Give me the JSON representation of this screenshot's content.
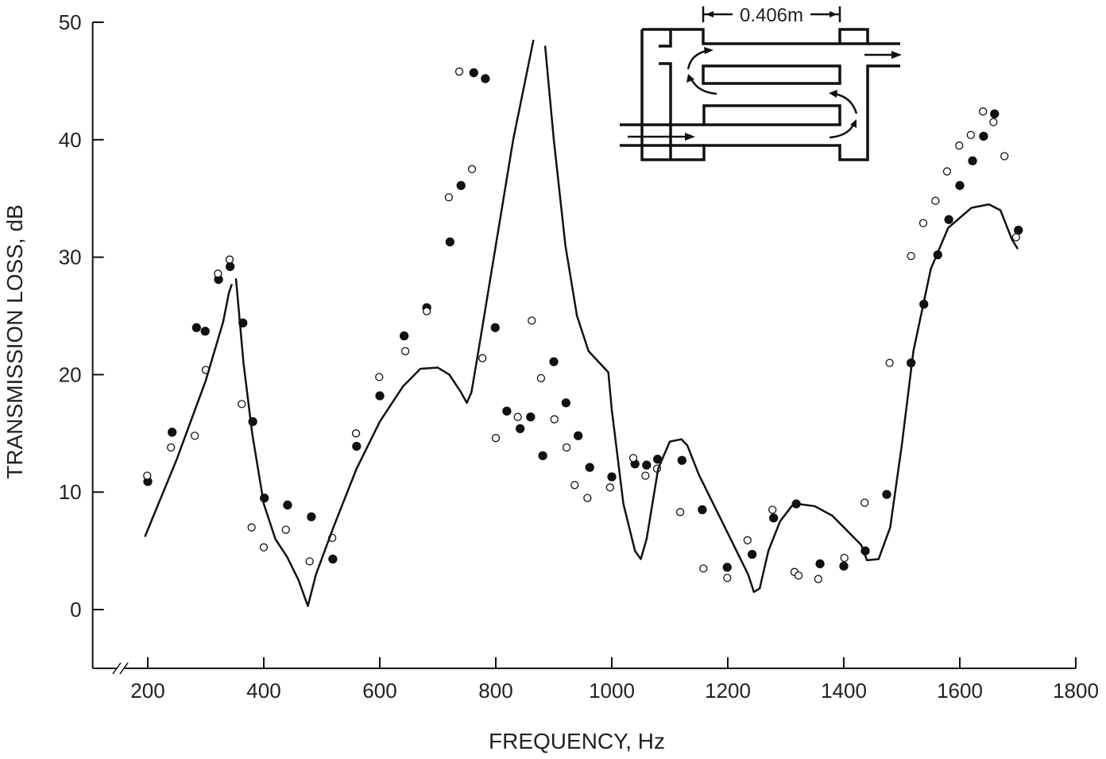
{
  "chart_data": {
    "type": "scatter",
    "title": "",
    "xlabel": "FREQUENCY, Hz",
    "ylabel": "TRANSMISSION LOSS, dB",
    "xlim": [
      105,
      1800
    ],
    "ylim": [
      -5,
      50
    ],
    "x_ticks": [
      200,
      400,
      600,
      800,
      1000,
      1200,
      1400,
      1600,
      1800
    ],
    "y_ticks": [
      0,
      10,
      20,
      30,
      40,
      50
    ],
    "grid": false,
    "axis_break": "x-axis near origin",
    "inset_label": "0.406m",
    "series": [
      {
        "marker": "filled-circle",
        "points": [
          [
            200,
            10.9
          ],
          [
            242,
            15.1
          ],
          [
            284,
            24.0
          ],
          [
            299,
            23.7
          ],
          [
            322,
            28.1
          ],
          [
            342,
            29.2
          ],
          [
            364,
            24.4
          ],
          [
            381,
            16.0
          ],
          [
            401,
            9.5
          ],
          [
            441,
            8.9
          ],
          [
            482,
            7.9
          ],
          [
            519,
            4.3
          ],
          [
            560,
            13.9
          ],
          [
            600,
            18.2
          ],
          [
            642,
            23.3
          ],
          [
            681,
            25.7
          ],
          [
            721,
            31.3
          ],
          [
            740,
            36.1
          ],
          [
            762,
            45.7
          ],
          [
            782,
            45.2
          ],
          [
            799,
            24.0
          ],
          [
            819,
            16.9
          ],
          [
            842,
            15.4
          ],
          [
            860,
            16.4
          ],
          [
            881,
            13.1
          ],
          [
            900,
            21.1
          ],
          [
            921,
            17.6
          ],
          [
            942,
            14.8
          ],
          [
            962,
            12.1
          ],
          [
            1000,
            11.3
          ],
          [
            1040,
            12.4
          ],
          [
            1060,
            12.3
          ],
          [
            1079,
            12.8
          ],
          [
            1121,
            12.7
          ],
          [
            1156,
            8.5
          ],
          [
            1199,
            3.6
          ],
          [
            1242,
            4.7
          ],
          [
            1279,
            7.8
          ],
          [
            1318,
            9.0
          ],
          [
            1359,
            3.9
          ],
          [
            1400,
            3.7
          ],
          [
            1437,
            5.0
          ],
          [
            1474,
            9.8
          ],
          [
            1516,
            21.0
          ],
          [
            1538,
            26.0
          ],
          [
            1562,
            30.2
          ],
          [
            1581,
            33.2
          ],
          [
            1600,
            36.1
          ],
          [
            1622,
            38.2
          ],
          [
            1641,
            40.3
          ],
          [
            1660,
            42.2
          ],
          [
            1701,
            32.3
          ]
        ]
      },
      {
        "marker": "open-circle",
        "points": [
          [
            199,
            11.4
          ],
          [
            240,
            13.8
          ],
          [
            281,
            14.8
          ],
          [
            300,
            20.4
          ],
          [
            321,
            28.6
          ],
          [
            341,
            29.8
          ],
          [
            362,
            17.5
          ],
          [
            379,
            7.0
          ],
          [
            400,
            5.3
          ],
          [
            438,
            6.8
          ],
          [
            479,
            4.1
          ],
          [
            518,
            6.1
          ],
          [
            559,
            15.0
          ],
          [
            599,
            19.8
          ],
          [
            644,
            22.0
          ],
          [
            681,
            25.4
          ],
          [
            719,
            35.1
          ],
          [
            737,
            45.8
          ],
          [
            759,
            37.5
          ],
          [
            777,
            21.4
          ],
          [
            800,
            14.6
          ],
          [
            838,
            16.4
          ],
          [
            862,
            24.6
          ],
          [
            878,
            19.7
          ],
          [
            901,
            16.2
          ],
          [
            922,
            13.8
          ],
          [
            936,
            10.6
          ],
          [
            958,
            9.5
          ],
          [
            997,
            10.4
          ],
          [
            1037,
            12.9
          ],
          [
            1058,
            11.4
          ],
          [
            1078,
            12.0
          ],
          [
            1118,
            8.3
          ],
          [
            1158,
            3.5
          ],
          [
            1199,
            2.7
          ],
          [
            1234,
            5.9
          ],
          [
            1277,
            8.5
          ],
          [
            1315,
            3.2
          ],
          [
            1322,
            2.9
          ],
          [
            1356,
            2.6
          ],
          [
            1401,
            4.4
          ],
          [
            1436,
            9.1
          ],
          [
            1479,
            21.0
          ],
          [
            1516,
            30.1
          ],
          [
            1537,
            32.9
          ],
          [
            1558,
            34.8
          ],
          [
            1578,
            37.3
          ],
          [
            1599,
            39.5
          ],
          [
            1619,
            40.4
          ],
          [
            1640,
            42.4
          ],
          [
            1658,
            41.5
          ],
          [
            1677,
            38.6
          ],
          [
            1697,
            31.7
          ]
        ]
      },
      {
        "marker": "line",
        "segments": [
          [
            [
              195,
              6.2
            ],
            [
              250,
              12.8
            ],
            [
              300,
              19.5
            ],
            [
              330,
              24.5
            ],
            [
              340,
              27
            ],
            [
              345,
              27.7
            ]
          ],
          [
            [
              352,
              28.2
            ],
            [
              365,
              21
            ],
            [
              380,
              15
            ],
            [
              400,
              9
            ],
            [
              420,
              6
            ],
            [
              440,
              4.5
            ],
            [
              460,
              2.5
            ],
            [
              476,
              0.3
            ],
            [
              490,
              3
            ],
            [
              520,
              7
            ],
            [
              560,
              12
            ],
            [
              600,
              16
            ],
            [
              640,
              19
            ],
            [
              670,
              20.5
            ],
            [
              700,
              20.6
            ],
            [
              720,
              20
            ],
            [
              740,
              18.5
            ],
            [
              750,
              17.6
            ],
            [
              758,
              18.5
            ],
            [
              770,
              22
            ],
            [
              800,
              31
            ],
            [
              830,
              40
            ],
            [
              865,
              48.5
            ]
          ],
          [
            [
              885,
              48
            ],
            [
              900,
              40
            ],
            [
              920,
              31
            ],
            [
              940,
              25
            ],
            [
              960,
              22
            ],
            [
              994,
              20.2
            ],
            [
              1000,
              17
            ],
            [
              1020,
              9
            ],
            [
              1040,
              5
            ],
            [
              1050,
              4.3
            ],
            [
              1060,
              6
            ],
            [
              1080,
              12
            ],
            [
              1100,
              14.3
            ],
            [
              1120,
              14.5
            ],
            [
              1130,
              14
            ],
            [
              1150,
              11.5
            ],
            [
              1200,
              6.5
            ],
            [
              1235,
              3
            ],
            [
              1245,
              1.5
            ],
            [
              1255,
              1.8
            ],
            [
              1270,
              5
            ],
            [
              1290,
              7.5
            ],
            [
              1310,
              8.8
            ],
            [
              1320,
              9
            ],
            [
              1350,
              8.8
            ],
            [
              1380,
              8
            ],
            [
              1410,
              6.5
            ],
            [
              1430,
              5.5
            ],
            [
              1440,
              4.2
            ],
            [
              1460,
              4.3
            ],
            [
              1480,
              7
            ],
            [
              1500,
              14
            ],
            [
              1520,
              22
            ],
            [
              1550,
              29
            ],
            [
              1580,
              32.5
            ],
            [
              1620,
              34.2
            ],
            [
              1650,
              34.5
            ],
            [
              1670,
              34
            ],
            [
              1690,
              31.5
            ],
            [
              1700,
              30.7
            ]
          ]
        ]
      }
    ]
  }
}
